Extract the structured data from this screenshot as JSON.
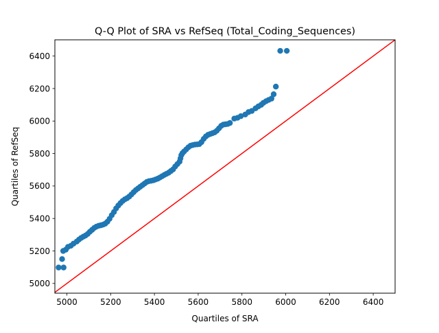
{
  "chart_data": {
    "type": "scatter",
    "title": "Q-Q Plot of SRA vs RefSeq (Total_Coding_Sequences)",
    "xlabel": "Quartiles of SRA",
    "ylabel": "Quartiles of RefSeq",
    "xlim": [
      4945,
      6500
    ],
    "ylim": [
      4940,
      6500
    ],
    "xticks": [
      5000,
      5200,
      5400,
      5600,
      5800,
      6000,
      6200,
      6400
    ],
    "yticks": [
      5000,
      5200,
      5400,
      5600,
      5800,
      6000,
      6200,
      6400
    ],
    "grid": false,
    "legend": "none",
    "series": [
      {
        "color": "#1f77b4",
        "x": [
          4962,
          4985,
          4978,
          4983,
          4995,
          5005,
          5018,
          5030,
          5045,
          5055,
          5065,
          5075,
          5085,
          5095,
          5105,
          5115,
          5125,
          5135,
          5145,
          5155,
          5165,
          5175,
          5185,
          5195,
          5205,
          5215,
          5225,
          5235,
          5245,
          5255,
          5265,
          5275,
          5285,
          5295,
          5305,
          5315,
          5325,
          5335,
          5345,
          5355,
          5365,
          5375,
          5385,
          5395,
          5405,
          5415,
          5425,
          5435,
          5445,
          5455,
          5465,
          5475,
          5485,
          5495,
          5505,
          5515,
          5519,
          5523,
          5528,
          5535,
          5545,
          5555,
          5565,
          5575,
          5585,
          5595,
          5605,
          5615,
          5625,
          5635,
          5645,
          5655,
          5665,
          5675,
          5685,
          5695,
          5705,
          5715,
          5725,
          5735,
          5745,
          5765,
          5780,
          5795,
          5815,
          5830,
          5845,
          5862,
          5875,
          5888,
          5898,
          5910,
          5922,
          5935,
          5945,
          5955,
          5975,
          6005
        ],
        "y": [
          5098,
          5098,
          5150,
          5200,
          5208,
          5225,
          5232,
          5245,
          5258,
          5270,
          5280,
          5288,
          5295,
          5305,
          5318,
          5330,
          5342,
          5350,
          5355,
          5358,
          5362,
          5368,
          5380,
          5398,
          5420,
          5440,
          5462,
          5480,
          5495,
          5508,
          5518,
          5525,
          5535,
          5548,
          5562,
          5575,
          5585,
          5595,
          5605,
          5615,
          5625,
          5630,
          5632,
          5635,
          5640,
          5645,
          5652,
          5660,
          5668,
          5675,
          5682,
          5692,
          5702,
          5720,
          5735,
          5750,
          5770,
          5790,
          5802,
          5812,
          5825,
          5838,
          5848,
          5852,
          5855,
          5856,
          5858,
          5870,
          5890,
          5905,
          5915,
          5920,
          5925,
          5930,
          5940,
          5955,
          5970,
          5978,
          5980,
          5982,
          5988,
          6015,
          6020,
          6030,
          6040,
          6055,
          6062,
          6078,
          6090,
          6100,
          6112,
          6122,
          6130,
          6138,
          6165,
          6212,
          6432,
          6432
        ]
      }
    ],
    "reference_line": {
      "color": "#ff0000",
      "x": [
        4945,
        6500
      ],
      "y": [
        4945,
        6500
      ]
    }
  }
}
